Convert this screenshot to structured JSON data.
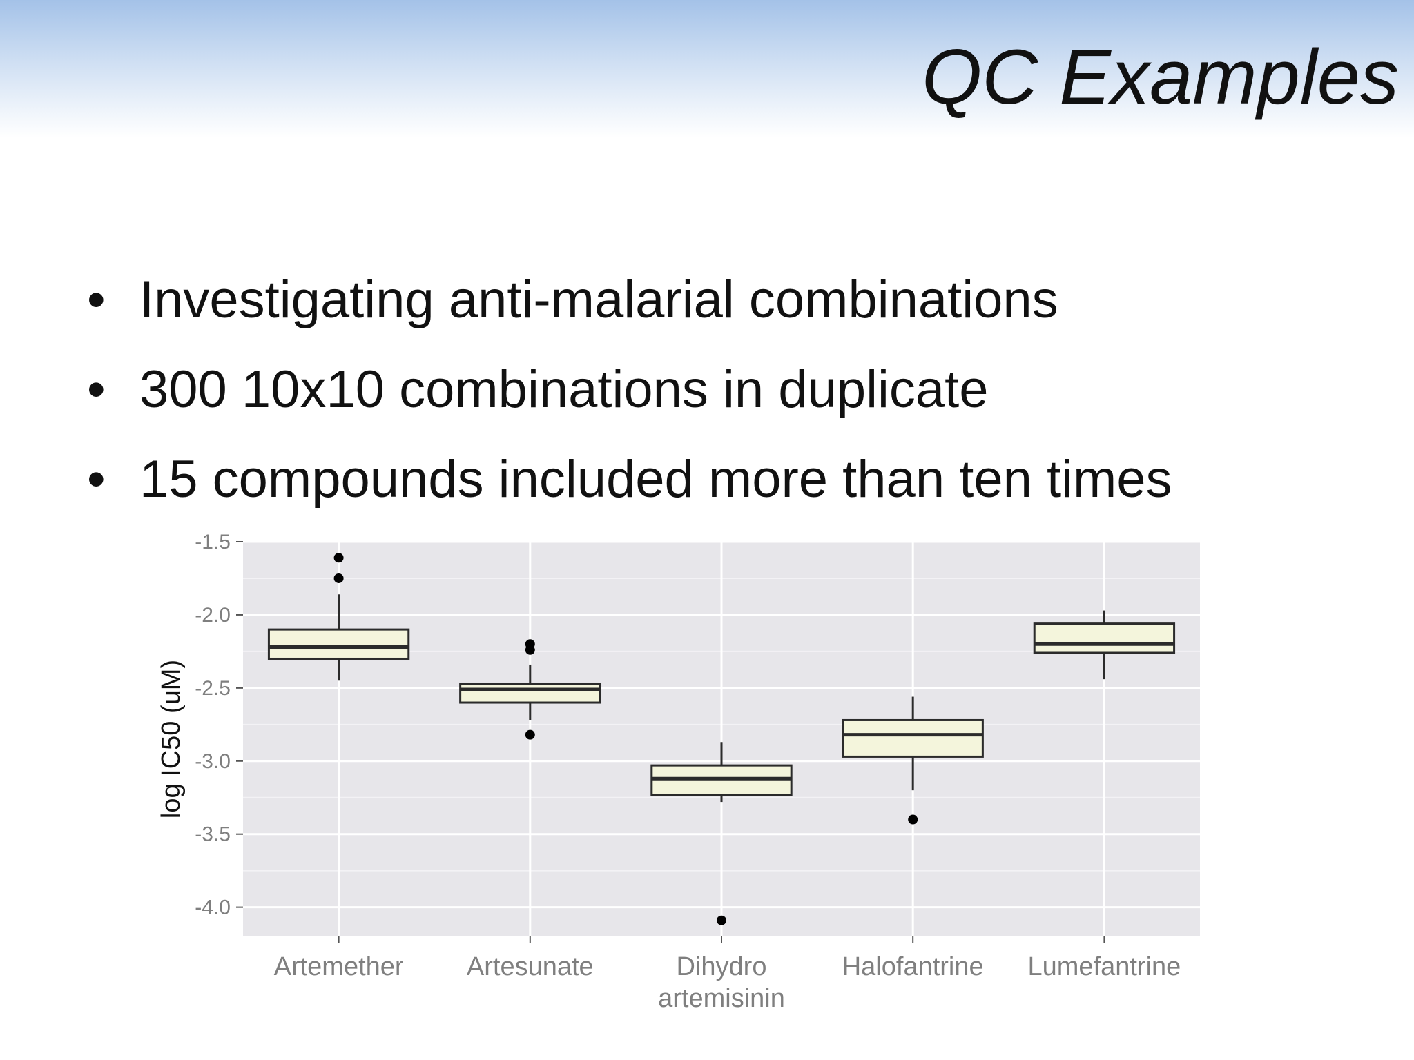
{
  "slide": {
    "title": "QC Examples",
    "bullet_symbol": "•",
    "bullets": [
      "Investigating anti-malarial combinations",
      "300 10x10 combinations in duplicate",
      "15 compounds included more than ten times"
    ]
  },
  "colors": {
    "panel_bg": "#e7e6ea",
    "grid_major": "#ffffff",
    "box_fill": "#f4f5dc",
    "box_stroke": "#2b2b2b",
    "axis_text": "#7f7f7f"
  },
  "chart_data": {
    "type": "box",
    "title": "",
    "xlabel": "",
    "ylabel": "log IC50 (uM)",
    "ylim": [
      -4.2,
      -1.5
    ],
    "yticks": [
      -1.5,
      -2.0,
      -2.5,
      -3.0,
      -3.5,
      -4.0
    ],
    "ytick_labels": [
      "-1.5",
      "-2.0",
      "-2.5",
      "-3.0",
      "-3.5",
      "-4.0"
    ],
    "grid": true,
    "legend": "none",
    "categories": [
      {
        "label_lines": [
          "Artemether"
        ],
        "whisker_low": -2.45,
        "q1": -2.3,
        "median": -2.22,
        "q3": -2.1,
        "whisker_high": -1.86,
        "outliers": [
          -1.61,
          -1.75
        ]
      },
      {
        "label_lines": [
          "Artesunate"
        ],
        "whisker_low": -2.72,
        "q1": -2.6,
        "median": -2.51,
        "q3": -2.47,
        "whisker_high": -2.34,
        "outliers": [
          -2.2,
          -2.24,
          -2.82
        ]
      },
      {
        "label_lines": [
          "Dihydro",
          "artemisinin"
        ],
        "whisker_low": -3.28,
        "q1": -3.23,
        "median": -3.12,
        "q3": -3.03,
        "whisker_high": -2.87,
        "outliers": [
          -4.09
        ]
      },
      {
        "label_lines": [
          "Halofantrine"
        ],
        "whisker_low": -3.2,
        "q1": -2.97,
        "median": -2.82,
        "q3": -2.72,
        "whisker_high": -2.56,
        "outliers": [
          -3.4
        ]
      },
      {
        "label_lines": [
          "Lumefantrine"
        ],
        "whisker_low": -2.44,
        "q1": -2.26,
        "median": -2.2,
        "q3": -2.06,
        "whisker_high": -1.97,
        "outliers": []
      }
    ]
  }
}
